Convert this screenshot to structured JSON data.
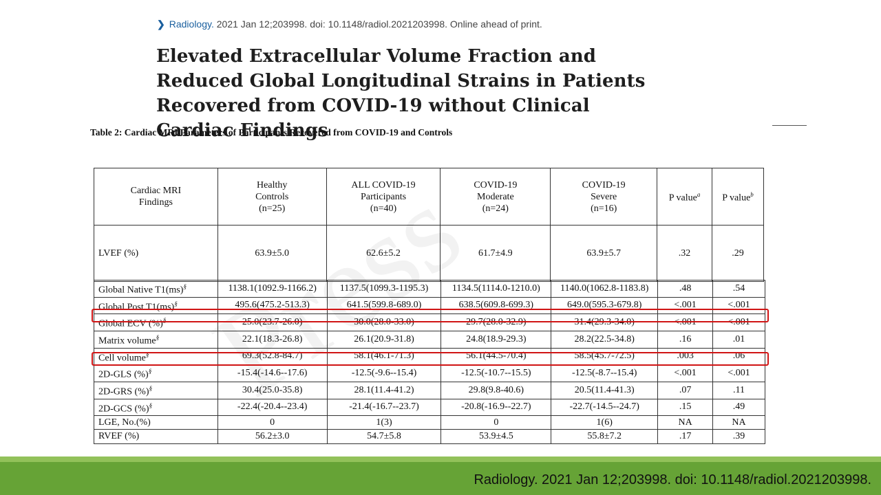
{
  "citation_top": {
    "journal": "Radiology.",
    "rest": " 2021 Jan 12;203998. doi: 10.1148/radiol.2021203998. Online ahead of print."
  },
  "title": "Elevated Extracellular Volume Fraction and Reduced Global Longitudinal Strains in Patients Recovered from COVID-19 without Clinical Cardiac Findings",
  "table_caption": "Table 2: Cardiac MRI Parameters of Participants Recovered from COVID-19 and Controls",
  "watermark": "Press",
  "table": {
    "headers": [
      [
        "Cardiac MRI",
        "Findings"
      ],
      [
        "Healthy",
        "Controls",
        "(n=25)"
      ],
      [
        "ALL COVID-19",
        "Participants",
        "(n=40)"
      ],
      [
        "COVID-19",
        "Moderate",
        "(n=24)"
      ],
      [
        "COVID-19",
        "Severe",
        "(n=16)"
      ],
      [
        "P value",
        "a"
      ],
      [
        "P value",
        "b"
      ]
    ],
    "lvef_row": [
      "LVEF (%)",
      "63.9±5.0",
      "62.6±5.2",
      "61.7±4.9",
      "63.9±5.7",
      ".32",
      ".29"
    ],
    "rows": [
      {
        "label": "Global Native T1(ms)",
        "sup": "§",
        "cells": [
          "1138.1(1092.9-1166.2)",
          "1137.5(1099.3-1195.3)",
          "1134.5(1114.0-1210.0)",
          "1140.0(1062.8-1183.8)",
          ".48",
          ".54"
        ]
      },
      {
        "label": "Global Post T1(ms)",
        "sup": "§",
        "cells": [
          "495.6(475.2-513.3)",
          "641.5(599.8-689.0)",
          "638.5(609.8-699.3)",
          "649.0(595.3-679.8)",
          "<.001",
          "<.001"
        ]
      },
      {
        "label": "Global ECV (%)",
        "sup": "§",
        "cells": [
          "25.0(23.7-26.0)",
          "30.0(28.0-33.0)",
          "29.7(28.0-32.9)",
          "31.4(29.3-34.0)",
          "<.001",
          "<.001"
        ]
      },
      {
        "label": "Matrix volume",
        "sup": "§",
        "cells": [
          "22.1(18.3-26.8)",
          "26.1(20.9-31.8)",
          "24.8(18.9-29.3)",
          "28.2(22.5-34.8)",
          ".16",
          ".01"
        ]
      },
      {
        "label": "Cell volume",
        "sup": "§",
        "cells": [
          "69.3(52.8-84.7)",
          "58.1(46.1-71.3)",
          "56.1(44.5-70.4)",
          "58.5(45.7-72.5)",
          ".003",
          ".06"
        ]
      },
      {
        "label": "2D-GLS (%)",
        "sup": "§",
        "cells": [
          "-15.4(-14.6--17.6)",
          "-12.5(-9.6--15.4)",
          "-12.5(-10.7--15.5)",
          "-12.5(-8.7--15.4)",
          "<.001",
          "<.001"
        ]
      },
      {
        "label": "2D-GRS (%)",
        "sup": "§",
        "cells": [
          "30.4(25.0-35.8)",
          "28.1(11.4-41.2)",
          "29.8(9.8-40.6)",
          "20.5(11.4-41.3)",
          ".07",
          ".11"
        ]
      },
      {
        "label": "2D-GCS (%)",
        "sup": "§",
        "cells": [
          "-22.4(-20.4--23.4)",
          "-21.4(-16.7--23.7)",
          "-20.8(-16.9--22.7)",
          "-22.7(-14.5--24.7)",
          ".15",
          ".49"
        ]
      },
      {
        "label": "LGE, No.(%)",
        "sup": "",
        "cells": [
          "0",
          "1(3)",
          "0",
          "1(6)",
          "NA",
          "NA"
        ]
      },
      {
        "label": "RVEF (%)",
        "sup": "",
        "cells": [
          "56.2±3.0",
          "54.7±5.8",
          "53.9±4.5",
          "55.8±7.2",
          ".17",
          ".39"
        ]
      }
    ]
  },
  "highlight_color": "#d01414",
  "footer": {
    "text": "Radiology. 2021 Jan 12;203998. doi: 10.1148/radiol.2021203998.",
    "color": "#66a336"
  }
}
